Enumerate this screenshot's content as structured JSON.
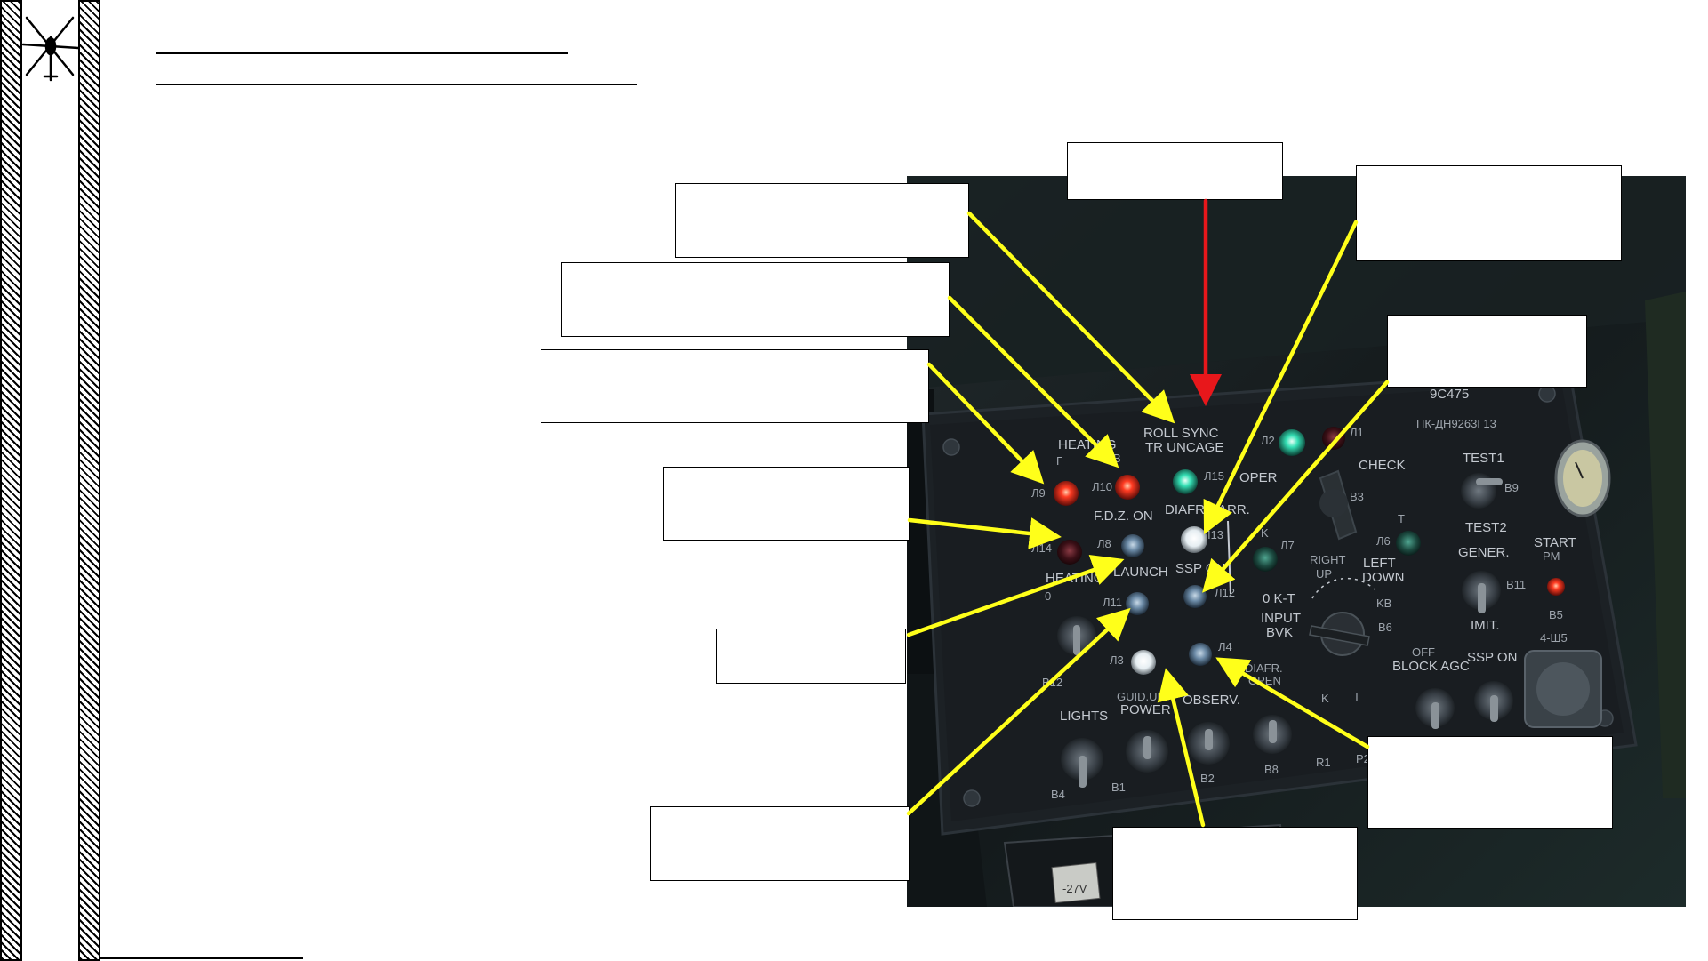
{
  "panel": {
    "model": "9С475",
    "serial": "ПК-ДН9263Г13",
    "connector": "4-Ш5",
    "voltage": "-27V",
    "labels": {
      "heating_top": "HEATING",
      "heating_g": "Г",
      "heating_b": "B",
      "roll_sync": "ROLL SYNC",
      "tr_uncage": "TR UNCAGE",
      "oper": "OPER",
      "check": "CHECK",
      "fdz_on": "F.D.Z. ON",
      "diafr_narr": "DIAFR.NARR.",
      "heating_mid": "HEATING",
      "zero": "0",
      "launch": "LAUNCH",
      "ssp_on": "SSP ON",
      "k": "K",
      "right": "RIGHT",
      "up": "UP",
      "left": "LEFT",
      "down": "DOWN",
      "t": "T",
      "kt": "0  K-T",
      "input": "INPUT",
      "bvk": "BVK",
      "kb": "KB",
      "test1": "TEST1",
      "test2": "TEST2",
      "gener": "GENER.",
      "imit": "IMIT.",
      "start": "START",
      "pm": "PM",
      "lights": "LIGHTS",
      "guid_unit": "GUID.UN",
      "power": "POWER",
      "observ": "OBSERV.",
      "diafr_open": "DIAFR.",
      "open": "OPEN",
      "off": "OFF",
      "block_agc": "BLOCK AGC",
      "ssp_on_2": "SSP ON",
      "k2": "K",
      "t2": "T"
    },
    "designators": {
      "l9": "Л9",
      "l10": "Л10",
      "l15": "Л15",
      "l2": "Л2",
      "l1": "Л1",
      "l14": "Л14",
      "l8": "Л8",
      "l13": "Л13",
      "l7": "Л7",
      "l6": "Л6",
      "l11": "Л11",
      "l12": "Л12",
      "l3": "Л3",
      "l4": "Л4",
      "b3": "B3",
      "b6": "B6",
      "b9": "B9",
      "b11": "B11",
      "b5": "B5",
      "b12": "B12",
      "b4": "B4",
      "b1": "B1",
      "b2": "B2",
      "b8": "B8",
      "r1": "R1",
      "r2": "P2"
    }
  },
  "colors": {
    "arrow_yellow": "#ffff1a",
    "arrow_red": "#e8171b",
    "lamp_red": "#ff3b22",
    "lamp_green": "#35e0b5",
    "lamp_white": "#ffffff",
    "panel": "#1a1e22"
  }
}
